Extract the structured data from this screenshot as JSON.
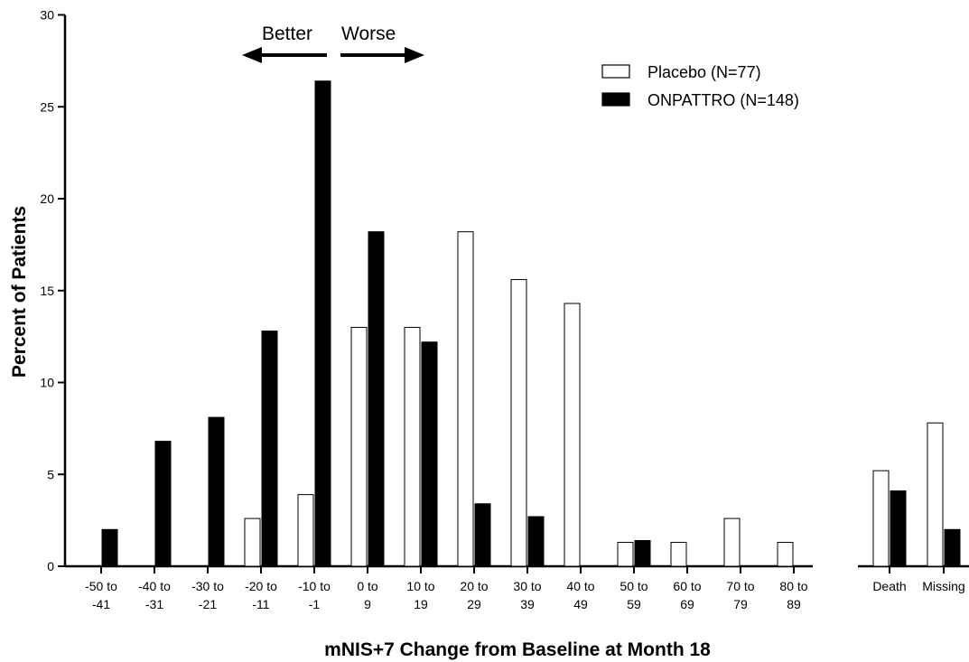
{
  "chart_data": {
    "type": "bar",
    "xlabel": "mNIS+7 Change from Baseline at Month 18",
    "ylabel": "Percent of Patients",
    "ylim": [
      0,
      30
    ],
    "yticks": [
      0,
      5,
      10,
      15,
      20,
      25,
      30
    ],
    "grid": false,
    "legend_position": "top-right",
    "categories": [
      [
        "-50 to",
        "-41"
      ],
      [
        "-40 to",
        "-31"
      ],
      [
        "-30 to",
        "-21"
      ],
      [
        "-20 to",
        "-11"
      ],
      [
        "-10 to",
        "-1"
      ],
      [
        "0 to",
        "9"
      ],
      [
        "10 to",
        "19"
      ],
      [
        "20 to",
        "29"
      ],
      [
        "30 to",
        "39"
      ],
      [
        "40 to",
        "49"
      ],
      [
        "50 to",
        "59"
      ],
      [
        "60 to",
        "69"
      ],
      [
        "70 to",
        "79"
      ],
      [
        "80 to",
        "89"
      ]
    ],
    "extra_categories": [
      [
        "Death"
      ],
      [
        "Missing"
      ]
    ],
    "series": [
      {
        "name": "Placebo (N=77)",
        "fill": "#ffffff",
        "values": [
          0,
          0,
          0,
          2.6,
          3.9,
          13.0,
          13.0,
          18.2,
          15.6,
          14.3,
          1.3,
          1.3,
          2.6,
          1.3
        ],
        "extra_values": [
          5.2,
          7.8
        ]
      },
      {
        "name": "ONPATTRO (N=148)",
        "fill": "#000000",
        "values": [
          2.0,
          6.8,
          8.1,
          12.8,
          26.4,
          18.2,
          12.2,
          3.4,
          2.7,
          0,
          1.4,
          0,
          0,
          0
        ],
        "extra_values": [
          4.1,
          2.0
        ]
      }
    ],
    "annotations": {
      "better": "Better",
      "worse": "Worse"
    }
  }
}
